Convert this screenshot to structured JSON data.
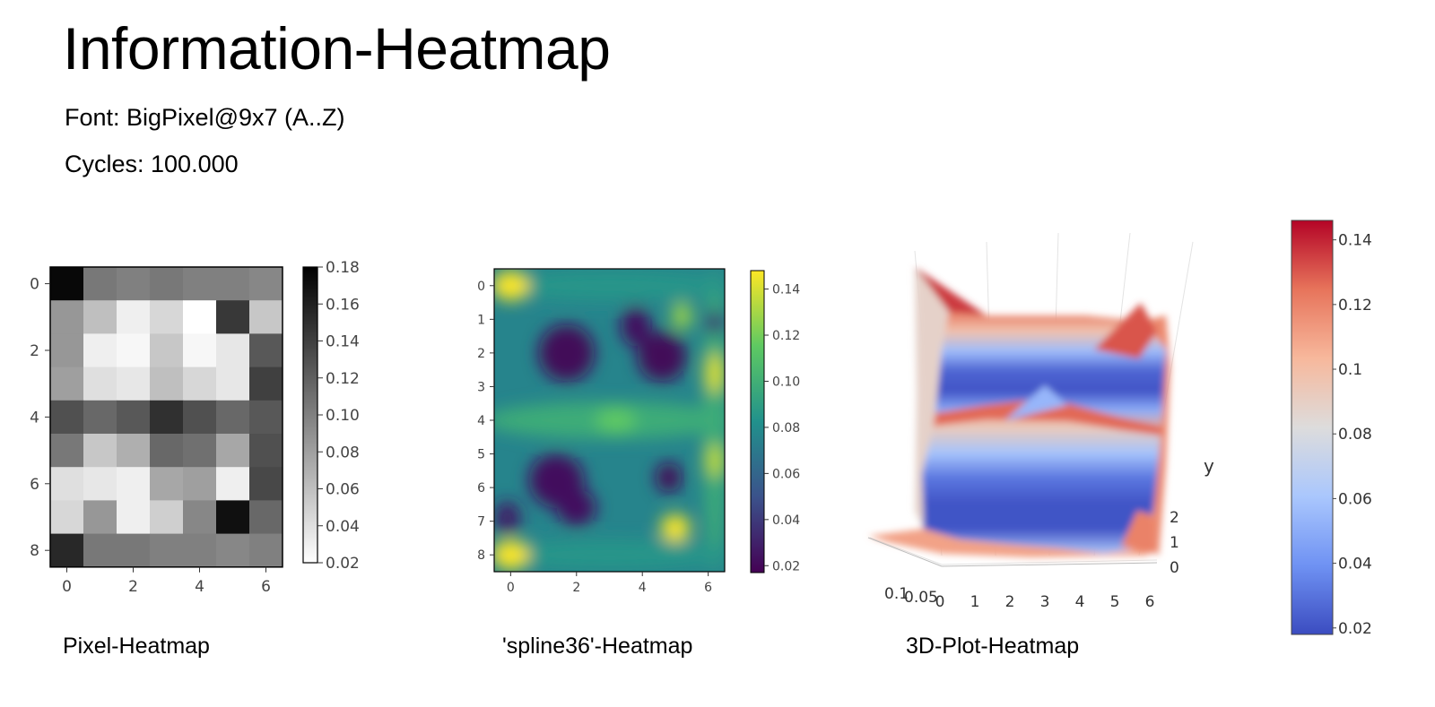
{
  "page": {
    "title": "Information-Heatmap",
    "font_line": "Font: BigPixel@9x7 (A..Z)",
    "cycles_line": "Cycles: 100.000"
  },
  "captions": {
    "pixel": "Pixel-Heatmap",
    "spline": "'spline36'-Heatmap",
    "plot3d": "3D-Plot-Heatmap"
  },
  "chart_data": [
    {
      "type": "heatmap",
      "title": "",
      "colormap": "gray_r",
      "interpolation": "nearest",
      "x_ticks": [
        "0",
        "2",
        "4",
        "6"
      ],
      "y_ticks": [
        "0",
        "2",
        "4",
        "6",
        "8"
      ],
      "colorbar_ticks": [
        "0.18",
        "0.16",
        "0.14",
        "0.12",
        "0.10",
        "0.08",
        "0.06",
        "0.04",
        "0.02"
      ],
      "vmin": 0.02,
      "vmax": 0.18,
      "values": [
        [
          0.175,
          0.105,
          0.1,
          0.105,
          0.1,
          0.1,
          0.095
        ],
        [
          0.085,
          0.06,
          0.03,
          0.045,
          0.02,
          0.145,
          0.055
        ],
        [
          0.085,
          0.03,
          0.025,
          0.055,
          0.025,
          0.035,
          0.125
        ],
        [
          0.08,
          0.04,
          0.035,
          0.06,
          0.045,
          0.035,
          0.14
        ],
        [
          0.13,
          0.115,
          0.125,
          0.15,
          0.13,
          0.115,
          0.125
        ],
        [
          0.105,
          0.055,
          0.07,
          0.115,
          0.11,
          0.075,
          0.13
        ],
        [
          0.04,
          0.035,
          0.03,
          0.075,
          0.08,
          0.03,
          0.135
        ],
        [
          0.045,
          0.085,
          0.03,
          0.05,
          0.095,
          0.17,
          0.115
        ],
        [
          0.155,
          0.105,
          0.105,
          0.1,
          0.1,
          0.095,
          0.1
        ]
      ]
    },
    {
      "type": "heatmap",
      "title": "",
      "colormap": "viridis",
      "interpolation": "spline36",
      "x_ticks": [
        "0",
        "2",
        "4",
        "6"
      ],
      "y_ticks": [
        "0",
        "1",
        "2",
        "3",
        "4",
        "5",
        "6",
        "7",
        "8"
      ],
      "colorbar_ticks": [
        "0.14",
        "0.12",
        "0.10",
        "0.08",
        "0.06",
        "0.04",
        "0.02"
      ],
      "vmin": 0.017,
      "vmax": 0.148
    },
    {
      "type": "heatmap",
      "title": "",
      "colormap": "coolwarm",
      "surface": "3d",
      "x_ticks": [
        "0",
        "1",
        "2",
        "3",
        "4",
        "5",
        "6"
      ],
      "y_ticks": [
        "0",
        "1",
        "2"
      ],
      "z_ticks": [
        "0.1",
        "0.05"
      ],
      "ylabel": "y",
      "colorbar_ticks": [
        "0.14",
        "0.12",
        "0.1",
        "0.08",
        "0.06",
        "0.04",
        "0.02"
      ],
      "vmin": 0.018,
      "vmax": 0.146
    }
  ],
  "colors": {
    "viridis": [
      "#440154",
      "#3b528b",
      "#21918c",
      "#5ec962",
      "#fde725"
    ],
    "coolwarm": [
      "#3b4cc0",
      "#6f92f3",
      "#aac7fd",
      "#dddcdc",
      "#f7b89c",
      "#e7745b",
      "#b40426"
    ]
  }
}
